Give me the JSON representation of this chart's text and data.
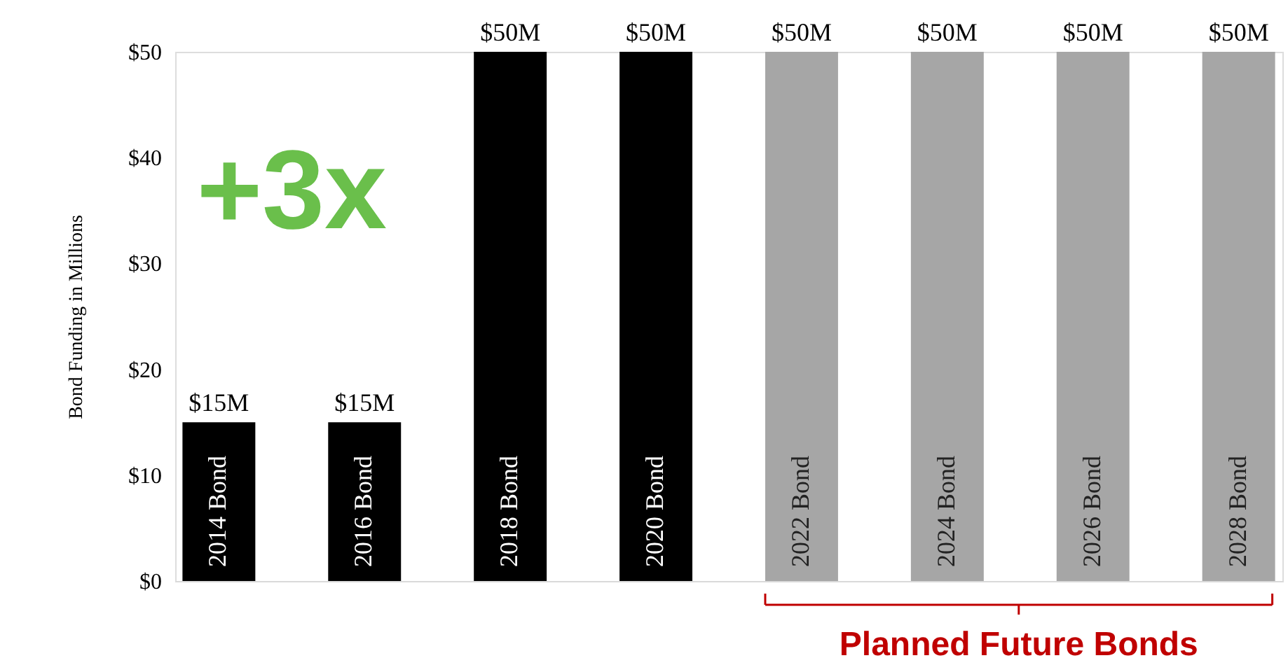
{
  "chart_data": {
    "type": "bar",
    "ylabel": "Bond Funding in Millions",
    "categories": [
      "2014 Bond",
      "2016 Bond",
      "2018 Bond",
      "2020 Bond",
      "2022 Bond",
      "2024 Bond",
      "2026 Bond",
      "2028 Bond"
    ],
    "values": [
      15,
      15,
      50,
      50,
      50,
      50,
      50,
      50
    ],
    "colors": [
      "#000000",
      "#000000",
      "#000000",
      "#000000",
      "#a6a6a6",
      "#a6a6a6",
      "#a6a6a6",
      "#a6a6a6"
    ],
    "value_labels": [
      "$15M",
      "$15M",
      "$50M",
      "$50M",
      "$50M",
      "$50M",
      "$50M",
      "$50M"
    ],
    "ylim": [
      0,
      50
    ],
    "yticks": [
      {
        "value": 0,
        "label": "$0"
      },
      {
        "value": 10,
        "label": "$10"
      },
      {
        "value": 20,
        "label": "$20"
      },
      {
        "value": 30,
        "label": "$30"
      },
      {
        "value": 40,
        "label": "$40"
      },
      {
        "value": 50,
        "label": "$50"
      }
    ],
    "grid": false,
    "annotations": [
      "+3x",
      "Planned Future Bonds"
    ]
  }
}
